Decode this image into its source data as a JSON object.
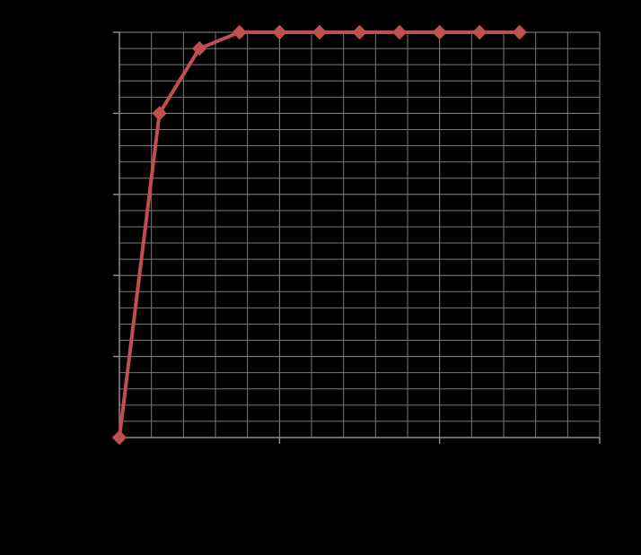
{
  "chart_data": {
    "type": "line",
    "title": "",
    "xlabel": "",
    "ylabel": "",
    "xlim": [
      0,
      15
    ],
    "ylim": [
      0,
      25
    ],
    "x_major_step": 5,
    "x_minor_step": 1,
    "y_major_step": 5,
    "y_minor_step": 1,
    "grid": true,
    "legend": "none",
    "series": [
      {
        "x": [
          0,
          1.25,
          2.5,
          3.75,
          5,
          6.25,
          7.5,
          8.75,
          10,
          11.25,
          12.5
        ],
        "y": [
          0,
          20,
          24,
          25,
          25,
          25,
          25,
          25,
          25,
          25,
          25
        ],
        "marker": "diamond"
      }
    ]
  },
  "colors": {
    "background": "#000000",
    "grid_minor": "#7a7a7a",
    "grid_major": "#8c8c8c",
    "axis": "#8c8c8c",
    "series": "#c0504d"
  }
}
